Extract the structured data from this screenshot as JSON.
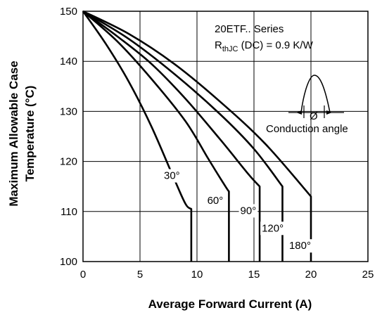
{
  "chart_data": {
    "type": "line",
    "xlabel": "Average Forward Current (A)",
    "ylabel_line1": "Maximum Allowable Case",
    "ylabel_line2": "Temperature (°C)",
    "xlim": [
      0,
      25
    ],
    "ylim": [
      100,
      150
    ],
    "xticks": [
      "0",
      "5",
      "10",
      "15",
      "20",
      "25"
    ],
    "yticks": [
      "100",
      "110",
      "120",
      "130",
      "140",
      "150"
    ],
    "grid": true,
    "annotation_title": "20ETF.. Series",
    "annotation_rth_main": "R",
    "annotation_rth_sub": "thJC",
    "annotation_rth_rest": " (DC) = 0.9 K/W",
    "inset_phi": "Ø",
    "inset_caption": "Conduction angle",
    "series": [
      {
        "name": "30°",
        "x": [
          0,
          2,
          4,
          6,
          8,
          9.0,
          9.5,
          9.5
        ],
        "y": [
          150,
          143.5,
          136,
          127,
          116.5,
          111.5,
          110.5,
          100
        ]
      },
      {
        "name": "60°",
        "x": [
          0,
          3,
          6,
          9,
          11,
          12.5,
          12.8,
          12.8
        ],
        "y": [
          150,
          144,
          136.5,
          128,
          120.5,
          115,
          114,
          100
        ]
      },
      {
        "name": "90°",
        "x": [
          0,
          3,
          6,
          9,
          12,
          14.5,
          15.5,
          15.5
        ],
        "y": [
          150,
          145,
          139.5,
          132.5,
          124.5,
          117.5,
          115,
          100
        ]
      },
      {
        "name": "120°",
        "x": [
          0,
          4,
          8,
          12,
          15,
          17.5,
          17.5
        ],
        "y": [
          150,
          144.5,
          137.5,
          129.5,
          122.5,
          115,
          100
        ]
      },
      {
        "name": "180°",
        "x": [
          0,
          4,
          8,
          12,
          16,
          20,
          20
        ],
        "y": [
          150,
          145.5,
          139.5,
          132,
          123.5,
          113,
          100
        ]
      }
    ]
  }
}
